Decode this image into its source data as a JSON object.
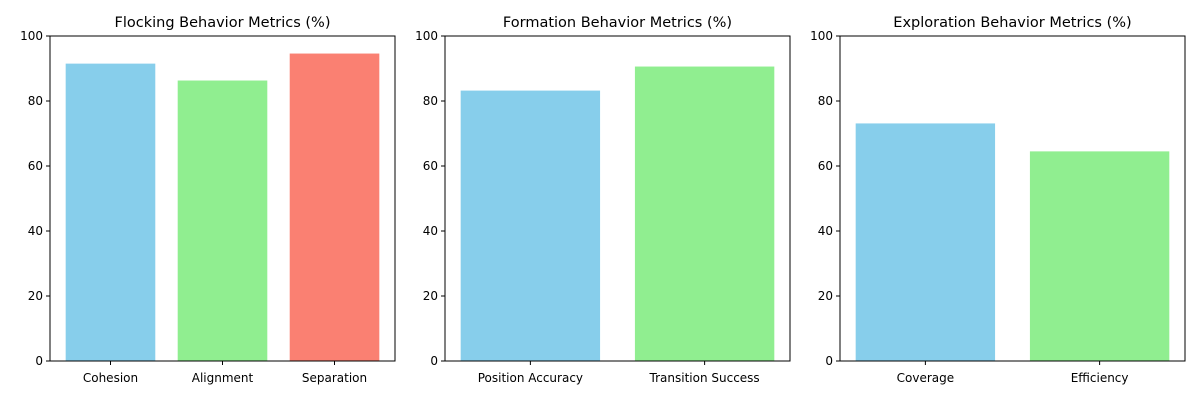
{
  "chart_data": [
    {
      "type": "bar",
      "title": "Flocking Behavior Metrics (%)",
      "categories": [
        "Cohesion",
        "Alignment",
        "Separation"
      ],
      "values": [
        91.5,
        86.3,
        94.6
      ],
      "colors": [
        "#87CEEB",
        "#90EE90",
        "#FA8072"
      ],
      "xlabel": "",
      "ylabel": "",
      "ylim": [
        0,
        100
      ],
      "yticks": [
        0,
        20,
        40,
        60,
        80,
        100
      ],
      "grid": false,
      "legend": "none"
    },
    {
      "type": "bar",
      "title": "Formation Behavior Metrics (%)",
      "categories": [
        "Position Accuracy",
        "Transition Success"
      ],
      "values": [
        83.2,
        90.6
      ],
      "colors": [
        "#87CEEB",
        "#90EE90"
      ],
      "xlabel": "",
      "ylabel": "",
      "ylim": [
        0,
        100
      ],
      "yticks": [
        0,
        20,
        40,
        60,
        80,
        100
      ],
      "grid": false,
      "legend": "none"
    },
    {
      "type": "bar",
      "title": "Exploration Behavior Metrics (%)",
      "categories": [
        "Coverage",
        "Efficiency"
      ],
      "values": [
        73.1,
        64.5
      ],
      "colors": [
        "#87CEEB",
        "#90EE90"
      ],
      "xlabel": "",
      "ylabel": "",
      "ylim": [
        0,
        100
      ],
      "yticks": [
        0,
        20,
        40,
        60,
        80,
        100
      ],
      "grid": false,
      "legend": "none"
    }
  ]
}
